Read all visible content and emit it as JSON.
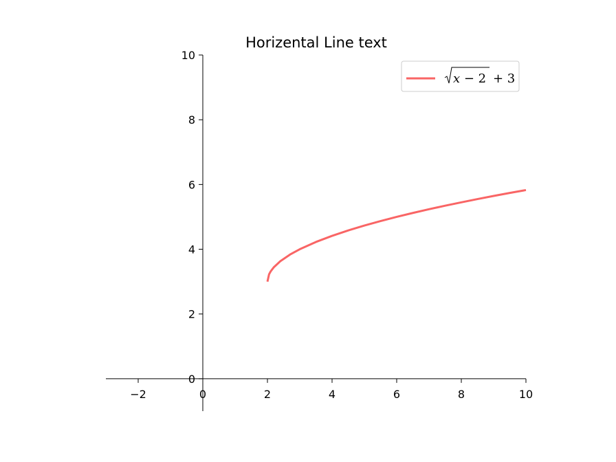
{
  "chart_data": {
    "type": "line",
    "title": "Horizental Line text",
    "xlabel": "",
    "ylabel": "",
    "xlim": [
      -3,
      10
    ],
    "ylim": [
      -1,
      10
    ],
    "x_ticks": [
      -2,
      0,
      2,
      4,
      6,
      8,
      10
    ],
    "x_tick_labels": [
      "−2",
      "0",
      "2",
      "4",
      "6",
      "8",
      "10"
    ],
    "y_ticks": [
      0,
      2,
      4,
      6,
      8,
      10
    ],
    "y_tick_labels": [
      "0",
      "2",
      "4",
      "6",
      "8",
      "10"
    ],
    "grid": false,
    "legend_position": "upper right",
    "series": [
      {
        "name": "√(x − 2) + 3",
        "color": "#f96565",
        "x": [
          2,
          2.05,
          2.1,
          2.2,
          2.4,
          2.7,
          3,
          3.5,
          4,
          4.5,
          5,
          5.5,
          6,
          6.5,
          7,
          7.5,
          8,
          8.5,
          9,
          9.5,
          10
        ],
        "y": [
          3,
          3.224,
          3.316,
          3.447,
          3.632,
          3.837,
          4,
          4.225,
          4.414,
          4.581,
          4.732,
          4.871,
          5,
          5.121,
          5.236,
          5.345,
          5.449,
          5.55,
          5.646,
          5.739,
          5.828
        ]
      }
    ]
  }
}
